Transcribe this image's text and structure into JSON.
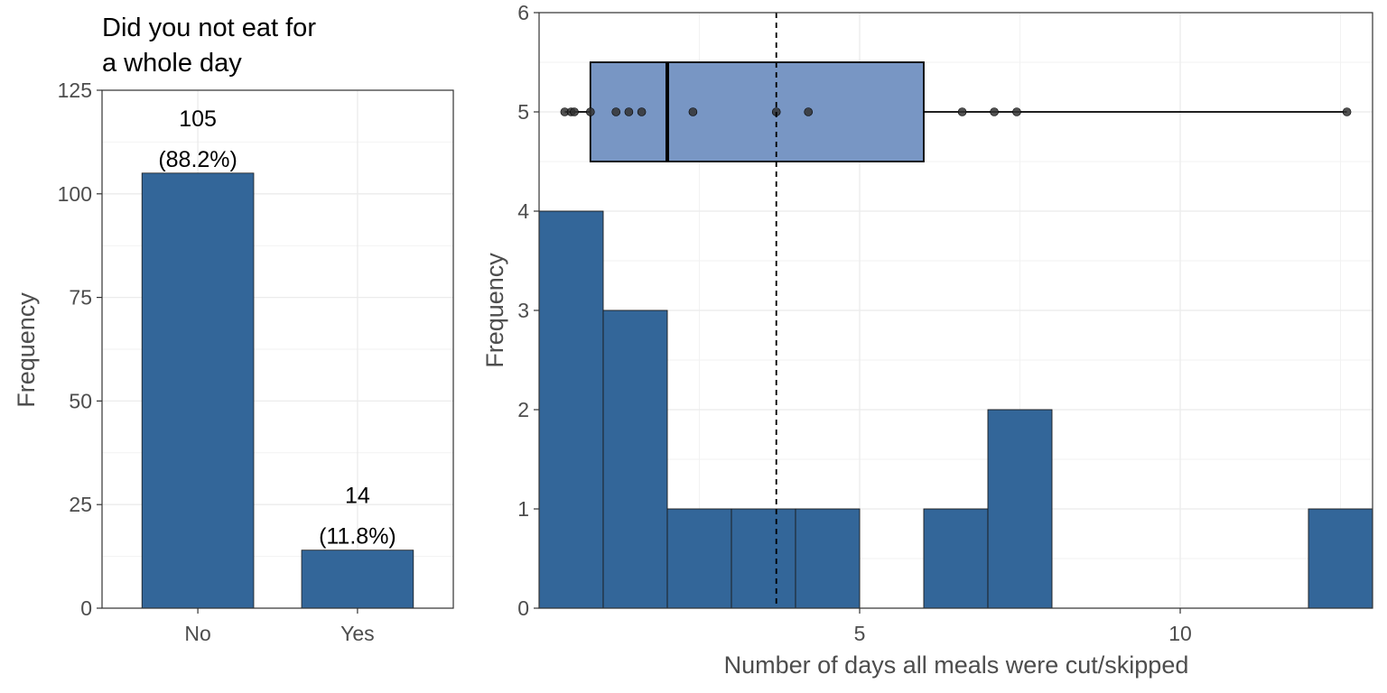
{
  "chart_data": [
    {
      "type": "bar",
      "title_lines": [
        "Did you not eat for",
        "a whole day"
      ],
      "xlabel": "",
      "ylabel": "Frequency",
      "categories": [
        "No",
        "Yes"
      ],
      "values": [
        105,
        14
      ],
      "value_labels": [
        "105",
        "14"
      ],
      "percent_labels": [
        "(88.2%)",
        "(11.8%)"
      ],
      "ylim": [
        0,
        125
      ],
      "yticks": [
        0,
        25,
        50,
        75,
        100,
        125
      ],
      "ytick_labels": [
        "0",
        "25",
        "50",
        "75",
        "100",
        "125"
      ],
      "bar_color": "#336699",
      "grid": true
    },
    {
      "type": "histogram",
      "xlabel": "Number of days all meals were cut/skipped",
      "ylabel": "Frequency",
      "bins": [
        {
          "x0": 0,
          "x1": 1,
          "count": 4
        },
        {
          "x0": 1,
          "x1": 2,
          "count": 3
        },
        {
          "x0": 2,
          "x1": 3,
          "count": 1
        },
        {
          "x0": 3,
          "x1": 4,
          "count": 1
        },
        {
          "x0": 4,
          "x1": 5,
          "count": 1
        },
        {
          "x0": 6,
          "x1": 7,
          "count": 1
        },
        {
          "x0": 7,
          "x1": 8,
          "count": 2
        },
        {
          "x0": 12,
          "x1": 13,
          "count": 1
        }
      ],
      "xlim": [
        0,
        13
      ],
      "xticks": [
        5,
        10
      ],
      "xtick_labels": [
        "5",
        "10"
      ],
      "ylim": [
        0,
        6
      ],
      "yticks": [
        0,
        1,
        2,
        3,
        4,
        5,
        6
      ],
      "ytick_labels": [
        "0",
        "1",
        "2",
        "3",
        "4",
        "5",
        "6"
      ],
      "mean_line": 3.7,
      "boxplot": {
        "y": 5,
        "q1": 0.8,
        "median": 2.0,
        "q3": 6.0,
        "whisker_low": 0.4,
        "whisker_high": 12.6,
        "points": [
          0.4,
          0.5,
          0.55,
          0.8,
          1.2,
          1.4,
          1.6,
          2.4,
          3.7,
          4.2,
          6.6,
          7.1,
          7.45,
          12.6
        ]
      },
      "bar_color": "#336699",
      "box_color": "#7896c4",
      "grid": true
    }
  ]
}
